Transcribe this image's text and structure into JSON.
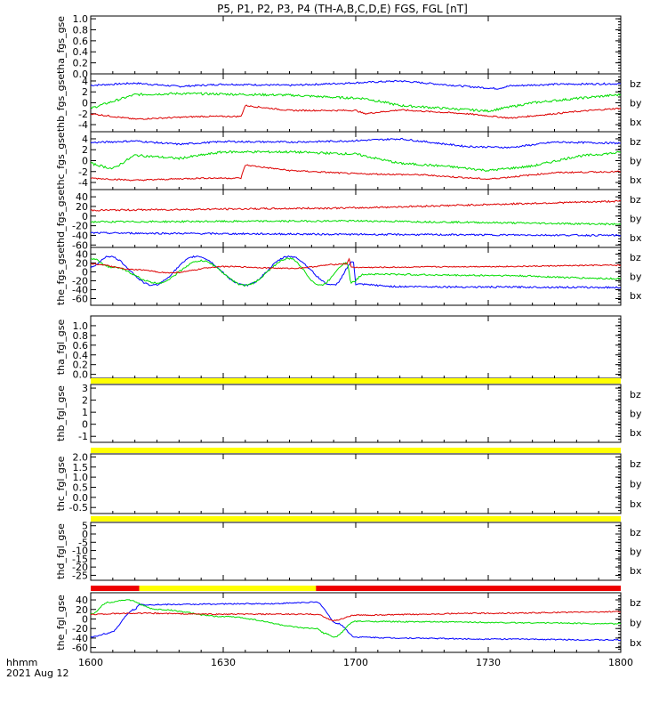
{
  "title": "P5, P1, P2, P3, P4 (TH-A,B,C,D,E) FGS, FGL [nT]",
  "colors": {
    "bx": "#0000ff",
    "by": "#00dd00",
    "bz": "#dd0000",
    "ql_yellow": "#ffff00",
    "ql_red": "#ee0000"
  },
  "x_axis": {
    "ticks": [
      {
        "v": 0,
        "label": "1600"
      },
      {
        "v": 30,
        "label": "1630"
      },
      {
        "v": 60,
        "label": "1700"
      },
      {
        "v": 90,
        "label": "1730"
      },
      {
        "v": 120,
        "label": "1800"
      }
    ],
    "caption": "hhmm",
    "date": "2021 Aug 12"
  },
  "chart_data": [
    {
      "type": "line",
      "ylabel": "tha_fgs_gse",
      "ylim": [
        0,
        1.05
      ],
      "ticks": [
        {
          "v": 0,
          "l": "0.0"
        },
        {
          "v": 0.2,
          "l": "0.2"
        },
        {
          "v": 0.4,
          "l": "0.4"
        },
        {
          "v": 0.6,
          "l": "0.6"
        },
        {
          "v": 0.8,
          "l": "0.8"
        },
        {
          "v": 1,
          "l": "1.0"
        }
      ],
      "legend": [],
      "series": []
    },
    {
      "type": "line",
      "ylabel": "thb_fgs_gse",
      "ylim": [
        -5.3,
        5.3
      ],
      "ticks": [
        {
          "v": -4,
          "l": "-4"
        },
        {
          "v": -2,
          "l": "-2"
        },
        {
          "v": 0,
          "l": "0"
        },
        {
          "v": 2,
          "l": "2"
        },
        {
          "v": 4,
          "l": "4"
        }
      ],
      "legend": [
        "bz",
        "by",
        "bx"
      ],
      "series": [
        {
          "name": "bx",
          "noise": 0.3,
          "points": [
            [
              0,
              3.2
            ],
            [
              10,
              3.6
            ],
            [
              20,
              3.0
            ],
            [
              30,
              3.4
            ],
            [
              45,
              3.2
            ],
            [
              58,
              3.6
            ],
            [
              70,
              4.0
            ],
            [
              85,
              3.0
            ],
            [
              92,
              2.6
            ],
            [
              95,
              3.1
            ],
            [
              105,
              3.4
            ],
            [
              120,
              3.5
            ]
          ]
        },
        {
          "name": "by",
          "noise": 0.4,
          "points": [
            [
              0,
              -1.0
            ],
            [
              10,
              1.5
            ],
            [
              20,
              1.7
            ],
            [
              30,
              1.6
            ],
            [
              45,
              1.4
            ],
            [
              55,
              1.0
            ],
            [
              62,
              0.8
            ],
            [
              70,
              -0.5
            ],
            [
              80,
              -1.0
            ],
            [
              90,
              -1.5
            ],
            [
              100,
              0.0
            ],
            [
              110,
              0.8
            ],
            [
              120,
              1.5
            ]
          ]
        },
        {
          "name": "bz",
          "noise": 0.25,
          "points": [
            [
              0,
              -2.0
            ],
            [
              10,
              -3.0
            ],
            [
              25,
              -2.5
            ],
            [
              34,
              -2.5
            ],
            [
              35,
              -0.5
            ],
            [
              45,
              -1.4
            ],
            [
              60,
              -1.4
            ],
            [
              62,
              -2.0
            ],
            [
              70,
              -1.3
            ],
            [
              85,
              -2.0
            ],
            [
              95,
              -2.8
            ],
            [
              110,
              -1.6
            ],
            [
              120,
              -1.0
            ]
          ]
        }
      ]
    },
    {
      "type": "line",
      "ylabel": "thc_fgs_gse",
      "ylim": [
        -5.3,
        5.3
      ],
      "ticks": [
        {
          "v": -4,
          "l": "-4"
        },
        {
          "v": -2,
          "l": "-2"
        },
        {
          "v": 0,
          "l": "0"
        },
        {
          "v": 2,
          "l": "2"
        },
        {
          "v": 4,
          "l": "4"
        }
      ],
      "legend": [
        "bz",
        "by",
        "bx"
      ],
      "series": [
        {
          "name": "bx",
          "noise": 0.3,
          "points": [
            [
              0,
              3.3
            ],
            [
              10,
              3.6
            ],
            [
              20,
              3.0
            ],
            [
              30,
              3.5
            ],
            [
              45,
              3.4
            ],
            [
              58,
              3.6
            ],
            [
              70,
              4.0
            ],
            [
              85,
              2.6
            ],
            [
              95,
              2.4
            ],
            [
              105,
              3.4
            ],
            [
              120,
              3.2
            ]
          ]
        },
        {
          "name": "by",
          "noise": 0.4,
          "points": [
            [
              0,
              -0.5
            ],
            [
              5,
              -1.5
            ],
            [
              10,
              1.0
            ],
            [
              20,
              0.4
            ],
            [
              30,
              1.6
            ],
            [
              45,
              1.6
            ],
            [
              60,
              1.2
            ],
            [
              70,
              -0.5
            ],
            [
              80,
              -1.0
            ],
            [
              90,
              -1.8
            ],
            [
              100,
              -1.0
            ],
            [
              110,
              0.8
            ],
            [
              120,
              1.5
            ]
          ]
        },
        {
          "name": "bz",
          "noise": 0.25,
          "points": [
            [
              0,
              -3.2
            ],
            [
              10,
              -3.6
            ],
            [
              25,
              -3.2
            ],
            [
              34,
              -3.2
            ],
            [
              35,
              -0.8
            ],
            [
              45,
              -1.8
            ],
            [
              60,
              -2.4
            ],
            [
              75,
              -2.6
            ],
            [
              90,
              -3.4
            ],
            [
              105,
              -2.2
            ],
            [
              120,
              -2.0
            ]
          ]
        }
      ]
    },
    {
      "type": "line",
      "ylabel": "thd_fgs_gse",
      "ylim": [
        -65,
        55
      ],
      "ticks": [
        {
          "v": -60,
          "l": "-60"
        },
        {
          "v": -40,
          "l": "-40"
        },
        {
          "v": -20,
          "l": "-20"
        },
        {
          "v": 0,
          "l": "0"
        },
        {
          "v": 20,
          "l": "20"
        },
        {
          "v": 40,
          "l": "40"
        }
      ],
      "legend": [
        "bz",
        "by",
        "bx"
      ],
      "series": [
        {
          "name": "bx",
          "noise": 0.3,
          "points": [
            [
              0,
              -35
            ],
            [
              60,
              -38
            ],
            [
              120,
              -40
            ]
          ]
        },
        {
          "name": "by",
          "noise": 0.3,
          "points": [
            [
              0,
              -12
            ],
            [
              60,
              -10
            ],
            [
              120,
              -17
            ]
          ]
        },
        {
          "name": "bz",
          "noise": 0.3,
          "points": [
            [
              0,
              12
            ],
            [
              60,
              17
            ],
            [
              120,
              31
            ]
          ]
        }
      ]
    },
    {
      "type": "line",
      "ylabel": "the_fgs_gse",
      "ylim": [
        -75,
        55
      ],
      "ticks": [
        {
          "v": -60,
          "l": "-60"
        },
        {
          "v": -40,
          "l": "-40"
        },
        {
          "v": -20,
          "l": "-20"
        },
        {
          "v": 0,
          "l": "0"
        },
        {
          "v": 20,
          "l": "20"
        },
        {
          "v": 40,
          "l": "40"
        }
      ],
      "legend": [
        "bz",
        "by",
        "bx"
      ],
      "series": [
        {
          "name": "bx",
          "noise": 0.3,
          "points": [
            [
              0,
              10
            ],
            [
              4,
              35
            ],
            [
              14,
              -30
            ],
            [
              24,
              35
            ],
            [
              35,
              -30
            ],
            [
              45,
              35
            ],
            [
              55,
              -30
            ],
            [
              59.5,
              22
            ],
            [
              60,
              -28
            ],
            [
              70,
              -33
            ],
            [
              90,
              -34
            ],
            [
              120,
              -35
            ]
          ]
        },
        {
          "name": "by",
          "noise": 0.3,
          "points": [
            [
              0,
              30
            ],
            [
              5,
              10
            ],
            [
              15,
              -25
            ],
            [
              25,
              25
            ],
            [
              35,
              -30
            ],
            [
              45,
              30
            ],
            [
              52,
              -30
            ],
            [
              58,
              20
            ],
            [
              59,
              -24
            ],
            [
              62,
              -5
            ],
            [
              90,
              -8
            ],
            [
              120,
              -15
            ]
          ]
        },
        {
          "name": "bz",
          "noise": 0.2,
          "points": [
            [
              0,
              18
            ],
            [
              10,
              5
            ],
            [
              18,
              -2
            ],
            [
              30,
              12
            ],
            [
              45,
              8
            ],
            [
              58,
              18
            ],
            [
              58.5,
              30
            ],
            [
              59,
              10
            ],
            [
              90,
              12
            ],
            [
              120,
              15
            ]
          ]
        }
      ]
    },
    {
      "type": "line",
      "ylabel": "tha_fgl_gse",
      "ylim": [
        -0.08,
        1.2
      ],
      "ticks": [
        {
          "v": 0,
          "l": "0.0"
        },
        {
          "v": 0.2,
          "l": "0.2"
        },
        {
          "v": 0.4,
          "l": "0.4"
        },
        {
          "v": 0.6,
          "l": "0.6"
        },
        {
          "v": 0.8,
          "l": "0.8"
        },
        {
          "v": 1,
          "l": "1.0"
        }
      ],
      "legend": [],
      "series": []
    },
    {
      "type": "line",
      "ylabel": "thb_fgl_gse",
      "ylim": [
        -1.5,
        3.3
      ],
      "ticks": [
        {
          "v": -1,
          "l": "-1"
        },
        {
          "v": 0,
          "l": "0"
        },
        {
          "v": 1,
          "l": "1"
        },
        {
          "v": 2,
          "l": "2"
        },
        {
          "v": 3,
          "l": "3"
        }
      ],
      "legend": [
        "bz",
        "by",
        "bx"
      ],
      "series": []
    },
    {
      "type": "line",
      "ylabel": "thc_fgl_gse",
      "ylim": [
        -0.8,
        2.15
      ],
      "ticks": [
        {
          "v": -0.5,
          "l": "-0.5"
        },
        {
          "v": 0,
          "l": "0.0"
        },
        {
          "v": 0.5,
          "l": "0.5"
        },
        {
          "v": 1,
          "l": "1.0"
        },
        {
          "v": 1.5,
          "l": "1.5"
        },
        {
          "v": 2,
          "l": "2.0"
        }
      ],
      "legend": [
        "bz",
        "by",
        "bx"
      ],
      "series": []
    },
    {
      "type": "line",
      "ylabel": "thd_fgl_gse",
      "ylim": [
        -28,
        7
      ],
      "ticks": [
        {
          "v": -25,
          "l": "-25"
        },
        {
          "v": -20,
          "l": "-20"
        },
        {
          "v": -15,
          "l": "-15"
        },
        {
          "v": -10,
          "l": "-10"
        },
        {
          "v": -5,
          "l": "-5"
        },
        {
          "v": 0,
          "l": "0"
        },
        {
          "v": 5,
          "l": "5"
        }
      ],
      "legend": [
        "bz",
        "by",
        "bx"
      ],
      "series": []
    },
    {
      "type": "line",
      "ylabel": "the_fgl_gse",
      "ylim": [
        -70,
        55
      ],
      "ticks": [
        {
          "v": -60,
          "l": "-60"
        },
        {
          "v": -40,
          "l": "-40"
        },
        {
          "v": -20,
          "l": "-20"
        },
        {
          "v": 0,
          "l": "0"
        },
        {
          "v": 20,
          "l": "20"
        },
        {
          "v": 40,
          "l": "40"
        }
      ],
      "legend": [
        "bz",
        "by",
        "bx"
      ],
      "series": [
        {
          "name": "bx",
          "noise": 0.2,
          "points": [
            [
              0,
              -38
            ],
            [
              4,
              -30
            ],
            [
              10,
              20
            ],
            [
              11,
              30
            ],
            [
              40,
              32
            ],
            [
              51,
              35
            ],
            [
              56,
              -10
            ],
            [
              60,
              -38
            ],
            [
              70,
              -40
            ],
            [
              90,
              -42
            ],
            [
              120,
              -44
            ]
          ]
        },
        {
          "name": "by",
          "noise": 0.2,
          "points": [
            [
              0,
              10
            ],
            [
              4,
              35
            ],
            [
              8,
              40
            ],
            [
              15,
              20
            ],
            [
              30,
              5
            ],
            [
              51,
              -20
            ],
            [
              53,
              -30
            ],
            [
              55,
              -38
            ],
            [
              60,
              -5
            ],
            [
              75,
              -6
            ],
            [
              100,
              -8
            ],
            [
              120,
              -10
            ]
          ]
        },
        {
          "name": "bz",
          "noise": 0.2,
          "points": [
            [
              0,
              10
            ],
            [
              10,
              12
            ],
            [
              30,
              10
            ],
            [
              51,
              10
            ],
            [
              55,
              -3
            ],
            [
              60,
              8
            ],
            [
              90,
              12
            ],
            [
              120,
              15
            ]
          ]
        }
      ]
    }
  ],
  "quality_bars": [
    {
      "after_panel": 5,
      "segments": [
        {
          "from": 0,
          "to": 120,
          "color": "yellow"
        }
      ]
    },
    {
      "after_panel": 6,
      "segments": [
        {
          "from": 0,
          "to": 120,
          "color": "yellow"
        }
      ]
    },
    {
      "after_panel": 7,
      "segments": [
        {
          "from": 0,
          "to": 120,
          "color": "yellow"
        }
      ]
    },
    {
      "after_panel": 8,
      "segments": [
        {
          "from": 0,
          "to": 11,
          "color": "red"
        },
        {
          "from": 11,
          "to": 51,
          "color": "yellow"
        },
        {
          "from": 51,
          "to": 120,
          "color": "red"
        }
      ]
    }
  ]
}
